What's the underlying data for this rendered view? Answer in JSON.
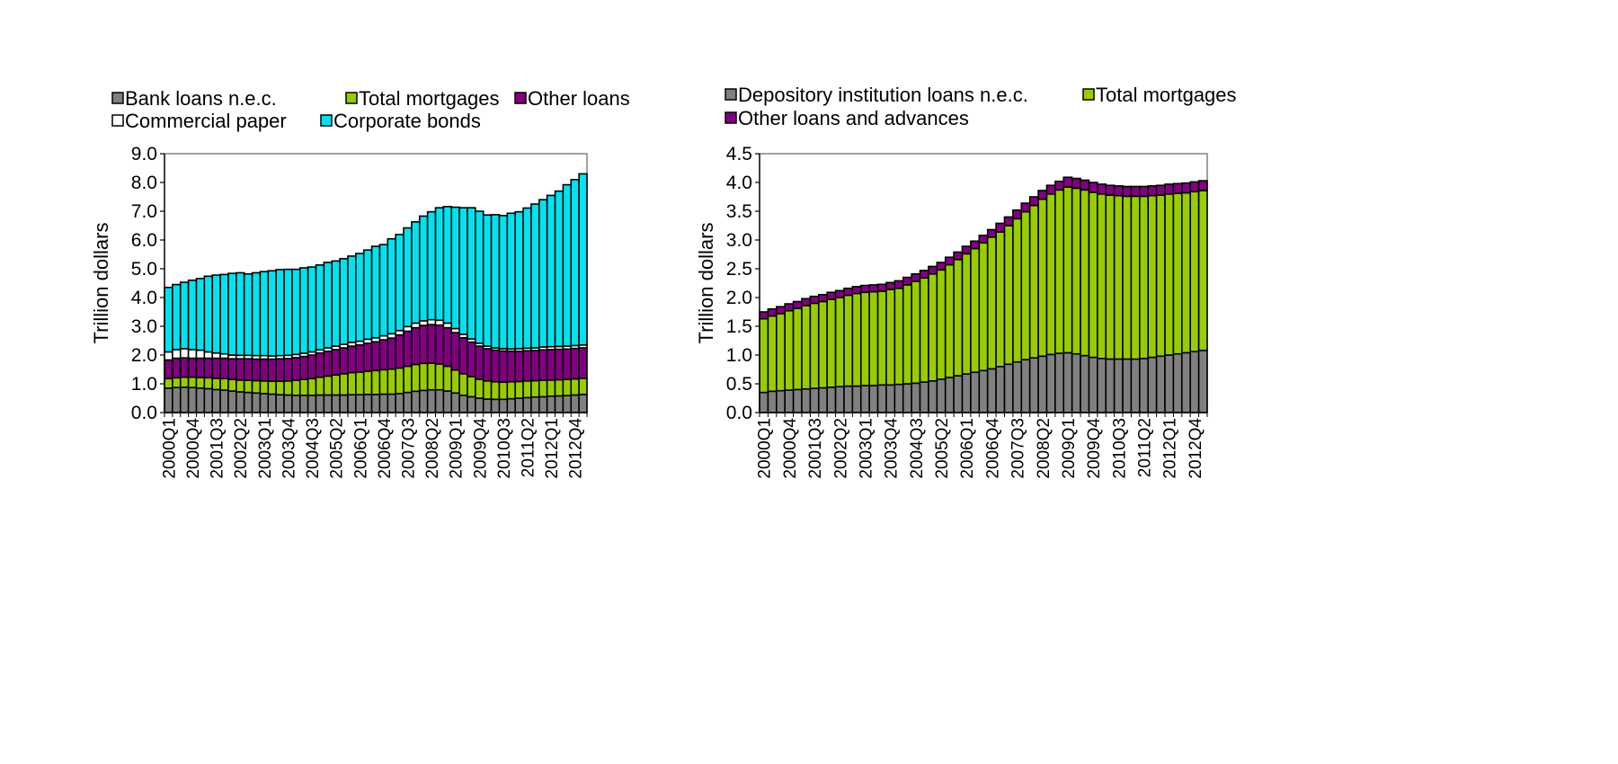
{
  "chart_data": [
    {
      "type": "bar",
      "stacked": true,
      "ylabel": "Trillion dollars",
      "ylim": [
        0,
        9
      ],
      "yticks": [
        "0.0",
        "1.0",
        "2.0",
        "3.0",
        "4.0",
        "5.0",
        "6.0",
        "7.0",
        "8.0",
        "9.0"
      ],
      "ytick_step": 1,
      "x_start": "2000Q1",
      "num_quarters": 53,
      "xtick_labels": [
        "2000Q1",
        "2000Q4",
        "2001Q3",
        "2002Q2",
        "2003Q1",
        "2003Q4",
        "2004Q3",
        "2005Q2",
        "2006Q1",
        "2006Q4",
        "2007Q3",
        "2008Q2",
        "2009Q1",
        "2009Q4",
        "2010Q3",
        "2011Q2",
        "2012Q1",
        "2012Q4"
      ],
      "legend": [
        "Bank loans n.e.c.",
        "Total mortgages",
        "Other loans",
        "Commercial paper",
        "Corporate bonds"
      ],
      "series": [
        {
          "name": "Bank loans n.e.c.",
          "color": "#808080",
          "values": [
            0.85,
            0.87,
            0.88,
            0.87,
            0.85,
            0.83,
            0.8,
            0.78,
            0.75,
            0.72,
            0.7,
            0.68,
            0.66,
            0.64,
            0.62,
            0.61,
            0.6,
            0.6,
            0.6,
            0.61,
            0.61,
            0.61,
            0.61,
            0.62,
            0.62,
            0.63,
            0.63,
            0.64,
            0.64,
            0.66,
            0.7,
            0.74,
            0.77,
            0.79,
            0.79,
            0.75,
            0.68,
            0.6,
            0.55,
            0.5,
            0.47,
            0.46,
            0.46,
            0.48,
            0.5,
            0.52,
            0.54,
            0.55,
            0.57,
            0.58,
            0.59,
            0.61,
            0.63
          ]
        },
        {
          "name": "Total mortgages",
          "color": "#99cc00",
          "values": [
            0.33,
            0.34,
            0.35,
            0.36,
            0.37,
            0.38,
            0.39,
            0.4,
            0.4,
            0.41,
            0.42,
            0.43,
            0.44,
            0.45,
            0.47,
            0.49,
            0.52,
            0.55,
            0.58,
            0.62,
            0.66,
            0.7,
            0.74,
            0.77,
            0.79,
            0.81,
            0.83,
            0.85,
            0.87,
            0.89,
            0.91,
            0.93,
            0.94,
            0.93,
            0.9,
            0.86,
            0.8,
            0.75,
            0.7,
            0.66,
            0.63,
            0.61,
            0.6,
            0.59,
            0.58,
            0.58,
            0.57,
            0.57,
            0.56,
            0.56,
            0.56,
            0.56,
            0.56
          ]
        },
        {
          "name": "Other loans",
          "color": "#800080",
          "values": [
            0.65,
            0.68,
            0.67,
            0.66,
            0.67,
            0.68,
            0.7,
            0.71,
            0.72,
            0.74,
            0.75,
            0.75,
            0.76,
            0.77,
            0.78,
            0.78,
            0.79,
            0.8,
            0.82,
            0.84,
            0.86,
            0.88,
            0.9,
            0.92,
            0.94,
            0.97,
            1.0,
            1.04,
            1.08,
            1.15,
            1.22,
            1.28,
            1.32,
            1.34,
            1.35,
            1.34,
            1.3,
            1.25,
            1.2,
            1.15,
            1.12,
            1.1,
            1.08,
            1.06,
            1.05,
            1.05,
            1.05,
            1.06,
            1.06,
            1.06,
            1.06,
            1.06,
            1.06
          ]
        },
        {
          "name": "Commercial paper",
          "color": "#ffffff",
          "values": [
            0.28,
            0.3,
            0.32,
            0.3,
            0.28,
            0.22,
            0.18,
            0.15,
            0.13,
            0.12,
            0.12,
            0.12,
            0.12,
            0.11,
            0.11,
            0.11,
            0.11,
            0.11,
            0.11,
            0.11,
            0.12,
            0.12,
            0.12,
            0.13,
            0.13,
            0.14,
            0.14,
            0.14,
            0.15,
            0.15,
            0.16,
            0.16,
            0.16,
            0.17,
            0.17,
            0.16,
            0.14,
            0.12,
            0.11,
            0.1,
            0.09,
            0.08,
            0.08,
            0.08,
            0.09,
            0.09,
            0.09,
            0.1,
            0.1,
            0.1,
            0.1,
            0.1,
            0.1
          ]
        },
        {
          "name": "Corporate bonds",
          "color": "#00e3ef",
          "values": [
            2.24,
            2.26,
            2.31,
            2.41,
            2.49,
            2.63,
            2.71,
            2.76,
            2.84,
            2.87,
            2.83,
            2.88,
            2.92,
            2.96,
            2.99,
            2.99,
            2.96,
            2.97,
            2.95,
            2.95,
            2.97,
            2.96,
            2.98,
            3.0,
            3.05,
            3.1,
            3.18,
            3.17,
            3.3,
            3.34,
            3.43,
            3.52,
            3.64,
            3.75,
            3.91,
            4.05,
            4.22,
            4.4,
            4.56,
            4.59,
            4.56,
            4.63,
            4.63,
            4.72,
            4.76,
            4.87,
            5.0,
            5.12,
            5.26,
            5.4,
            5.61,
            5.77,
            5.95
          ]
        }
      ]
    },
    {
      "type": "bar",
      "stacked": true,
      "ylabel": "Trillion dollars",
      "ylim": [
        0,
        4.5
      ],
      "yticks": [
        "0.0",
        "0.5",
        "1.0",
        "1.5",
        "2.0",
        "2.5",
        "3.0",
        "3.5",
        "4.0",
        "4.5"
      ],
      "ytick_step": 0.5,
      "x_start": "2000Q1",
      "num_quarters": 53,
      "xtick_labels": [
        "2000Q1",
        "2000Q4",
        "2001Q3",
        "2002Q2",
        "2003Q1",
        "2003Q4",
        "2004Q3",
        "2005Q2",
        "2006Q1",
        "2006Q4",
        "2007Q3",
        "2008Q2",
        "2009Q1",
        "2009Q4",
        "2010Q3",
        "2011Q2",
        "2012Q1",
        "2012Q4"
      ],
      "legend": [
        "Depository institution loans n.e.c.",
        "Total mortgages",
        "Other loans and advances"
      ],
      "series": [
        {
          "name": "Depository institution loans n.e.c.",
          "color": "#808080",
          "values": [
            0.35,
            0.37,
            0.38,
            0.39,
            0.4,
            0.41,
            0.42,
            0.43,
            0.44,
            0.45,
            0.46,
            0.46,
            0.47,
            0.47,
            0.48,
            0.48,
            0.49,
            0.5,
            0.51,
            0.53,
            0.55,
            0.58,
            0.61,
            0.64,
            0.67,
            0.7,
            0.73,
            0.76,
            0.8,
            0.84,
            0.88,
            0.92,
            0.95,
            0.98,
            1.01,
            1.03,
            1.04,
            1.02,
            0.99,
            0.96,
            0.94,
            0.93,
            0.93,
            0.93,
            0.93,
            0.94,
            0.96,
            0.98,
            1.0,
            1.02,
            1.04,
            1.06,
            1.08
          ]
        },
        {
          "name": "Total mortgages",
          "color": "#99cc00",
          "values": [
            1.28,
            1.31,
            1.34,
            1.38,
            1.41,
            1.45,
            1.48,
            1.5,
            1.53,
            1.55,
            1.58,
            1.61,
            1.62,
            1.63,
            1.63,
            1.66,
            1.67,
            1.72,
            1.77,
            1.81,
            1.86,
            1.9,
            1.96,
            2.02,
            2.09,
            2.15,
            2.22,
            2.29,
            2.34,
            2.41,
            2.49,
            2.57,
            2.65,
            2.73,
            2.79,
            2.84,
            2.88,
            2.88,
            2.88,
            2.87,
            2.86,
            2.85,
            2.84,
            2.83,
            2.83,
            2.82,
            2.81,
            2.8,
            2.8,
            2.79,
            2.78,
            2.78,
            2.78
          ]
        },
        {
          "name": "Other loans and advances",
          "color": "#800080",
          "values": [
            0.12,
            0.12,
            0.12,
            0.12,
            0.12,
            0.12,
            0.12,
            0.12,
            0.12,
            0.12,
            0.12,
            0.12,
            0.12,
            0.12,
            0.12,
            0.12,
            0.13,
            0.13,
            0.13,
            0.13,
            0.13,
            0.13,
            0.13,
            0.13,
            0.13,
            0.13,
            0.13,
            0.13,
            0.15,
            0.15,
            0.15,
            0.15,
            0.15,
            0.15,
            0.15,
            0.15,
            0.17,
            0.17,
            0.17,
            0.17,
            0.17,
            0.17,
            0.17,
            0.17,
            0.17,
            0.17,
            0.17,
            0.17,
            0.17,
            0.17,
            0.17,
            0.17,
            0.17
          ]
        }
      ]
    }
  ]
}
